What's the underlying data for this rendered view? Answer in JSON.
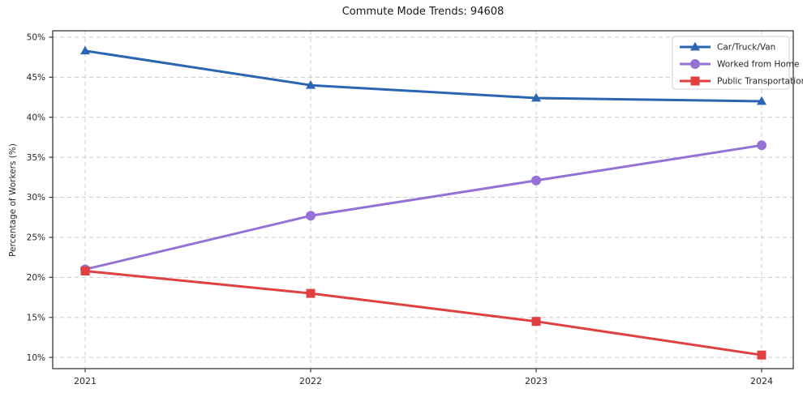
{
  "chart_data": {
    "type": "line",
    "title": "Commute Mode Trends: 94608",
    "xlabel": "",
    "ylabel": "Percentage of Workers (%)",
    "x": [
      "2021",
      "2022",
      "2023",
      "2024"
    ],
    "series": [
      {
        "name": "Car/Truck/Van",
        "values": [
          48.3,
          44.0,
          42.4,
          42.0
        ],
        "color": "#2a65b2",
        "marker": "triangle"
      },
      {
        "name": "Worked from Home",
        "values": [
          21.0,
          27.7,
          32.1,
          36.5
        ],
        "color": "#9571d6",
        "marker": "circle"
      },
      {
        "name": "Public Transportation",
        "values": [
          20.8,
          18.0,
          14.5,
          10.3
        ],
        "color": "#e04040",
        "marker": "square"
      }
    ],
    "yticks": [
      10,
      15,
      20,
      25,
      30,
      35,
      40,
      45,
      50
    ],
    "ytick_format": "{v}%",
    "ylim": [
      8.6,
      50.8
    ],
    "grid": "dashed-both-axes",
    "legend_position": "upper-right",
    "colors": {
      "background": "#ffffff",
      "grid": "#cccccc",
      "frame": "#3a3a3a",
      "tick_text": "#262626",
      "legend_border": "#cfcfcf"
    }
  }
}
